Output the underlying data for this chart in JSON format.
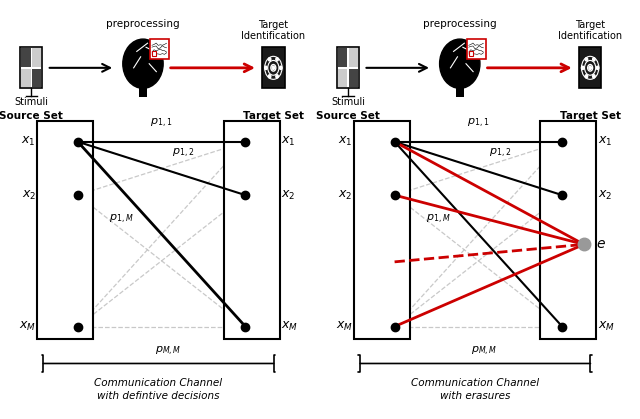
{
  "fig_width": 6.4,
  "fig_height": 4.19,
  "bg_color": "#ffffff",
  "gray_color": "#bbbbbb",
  "red_color": "#cc0000",
  "black_color": "#000000",
  "panels": [
    {
      "is_right": false,
      "channel_label_line1": "Communication Channel",
      "channel_label_line2": "with defintive decisions"
    },
    {
      "is_right": true,
      "channel_label_line1": "Communication Channel",
      "channel_label_line2": "with erasures"
    }
  ],
  "preprocessing_label": "preprocessing",
  "source_set_label": "Source Set",
  "target_set_label": "Target Set",
  "target_id_label": "Target\nIdentification",
  "stimuli_label": "Stimuli",
  "x1_label": "$x_1$",
  "x2_label": "$x_2$",
  "xM_label": "$x_M$",
  "p11_label": "$p_{1,1}$",
  "p12_label": "$p_{1,2}$",
  "p1M_label": "$p_{1,M}$",
  "pMM_label": "$p_{M,M}$",
  "e_label": "$e$"
}
